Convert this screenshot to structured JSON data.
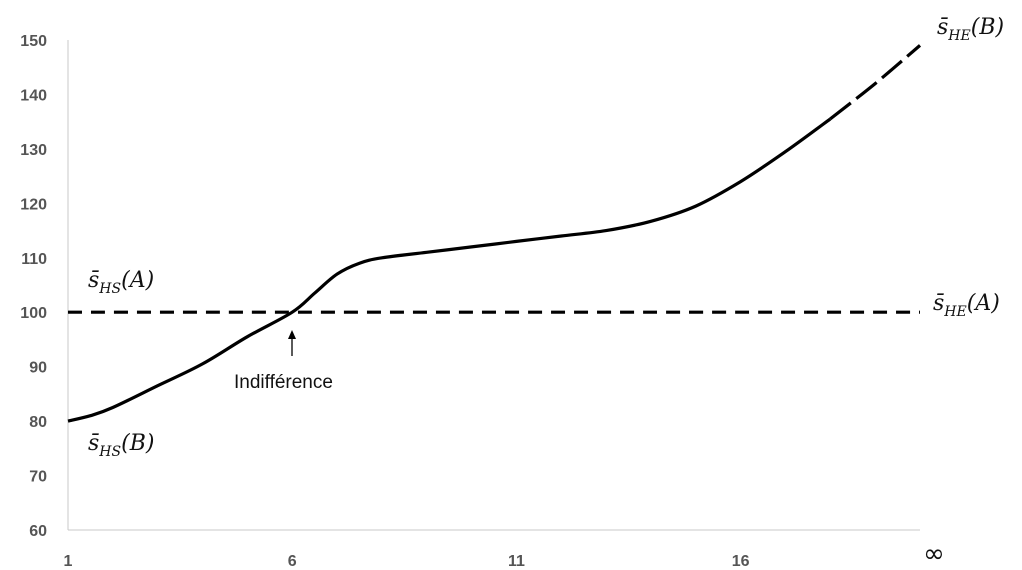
{
  "chart_data": {
    "type": "line",
    "title": "",
    "xlabel": "",
    "ylabel": "",
    "ylim": [
      60,
      150
    ],
    "xlim": [
      1,
      20
    ],
    "y_ticks": [
      60,
      70,
      80,
      90,
      100,
      110,
      120,
      130,
      140,
      150
    ],
    "x_ticks": [
      "1",
      "6",
      "11",
      "16",
      "∞"
    ],
    "grid": false,
    "series": [
      {
        "style": "solid-then-dashed",
        "x": [
          1,
          1.5,
          2,
          3,
          4,
          5,
          6,
          6.5,
          7,
          7.5,
          8,
          9,
          10,
          11,
          12,
          13,
          14,
          15,
          16,
          17,
          18,
          19,
          20
        ],
        "y": [
          80,
          81,
          82.5,
          86.5,
          90.5,
          95.5,
          100,
          103.5,
          107,
          109,
          110,
          111,
          112,
          113,
          114,
          115,
          116.7,
          119.5,
          124,
          129.5,
          135.5,
          142,
          149
        ]
      },
      {
        "style": "dashed",
        "x": [
          1,
          20
        ],
        "y": [
          100,
          100
        ]
      }
    ],
    "series_labels": [
      {
        "base": "s̄",
        "sub": "HE",
        "arg": "(B)"
      },
      {
        "base": "s̄",
        "sub": "HE",
        "arg": "(A)"
      },
      {
        "base": "s̄",
        "sub": "HS",
        "arg": "(A)"
      },
      {
        "base": "s̄",
        "sub": "HS",
        "arg": "(B)"
      }
    ],
    "annotations": [
      {
        "text": "Indifférence",
        "x": 6,
        "y": 100
      }
    ]
  }
}
